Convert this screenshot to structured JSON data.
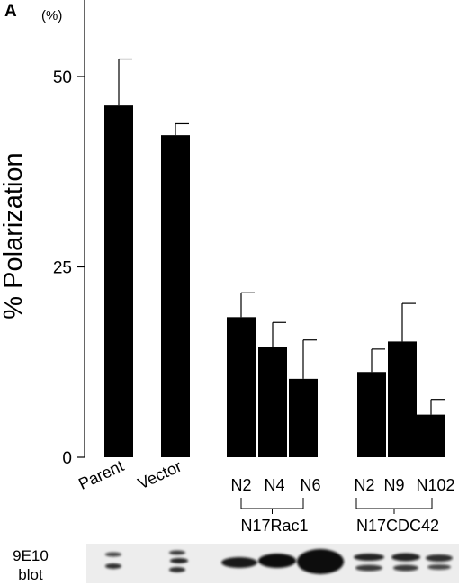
{
  "panel_label": "A",
  "chart_data": {
    "type": "bar",
    "ylabel": "% Polarization",
    "yunit": "(%)",
    "ylim": [
      0,
      60
    ],
    "yticks": [
      0,
      25,
      50
    ],
    "grid": false,
    "categories": [
      "Parent",
      "Vector",
      "N2",
      "N4",
      "N6",
      "N2",
      "N9",
      "N102"
    ],
    "values": [
      46.2,
      42.3,
      18.4,
      14.5,
      10.3,
      11.2,
      15.2,
      5.6
    ],
    "error_upper": [
      52.3,
      43.8,
      21.6,
      17.7,
      15.4,
      14.2,
      20.2,
      7.6
    ],
    "groups": [
      {
        "label": "N17Rac1",
        "members": [
          2,
          3,
          4
        ]
      },
      {
        "label": "N17CDC42",
        "members": [
          5,
          6,
          7
        ]
      }
    ]
  },
  "blot": {
    "label_line1": "9E10",
    "label_line2": "blot"
  }
}
